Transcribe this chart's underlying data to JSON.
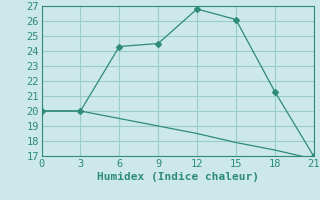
{
  "xlabel": "Humidex (Indice chaleur)",
  "line1_x": [
    0,
    3,
    6,
    9,
    12,
    15,
    18,
    21
  ],
  "line1_y": [
    20,
    20,
    24.3,
    24.5,
    26.8,
    26.1,
    21.3,
    17
  ],
  "line2_x": [
    0,
    3,
    6,
    9,
    12,
    15,
    18,
    21
  ],
  "line2_y": [
    20,
    20,
    19.5,
    19.0,
    18.5,
    17.9,
    17.4,
    16.8
  ],
  "line_color": "#2e8b7a",
  "bg_color": "#cce8e8",
  "grid_color": "#99cccc",
  "xlim": [
    0,
    21
  ],
  "ylim": [
    17,
    27
  ],
  "xticks": [
    0,
    3,
    6,
    9,
    12,
    15,
    18,
    21
  ],
  "yticks": [
    17,
    18,
    19,
    20,
    21,
    22,
    23,
    24,
    25,
    26,
    27
  ],
  "marker": "D",
  "markersize": 3,
  "tick_fontsize": 7.5,
  "xlabel_fontsize": 8
}
